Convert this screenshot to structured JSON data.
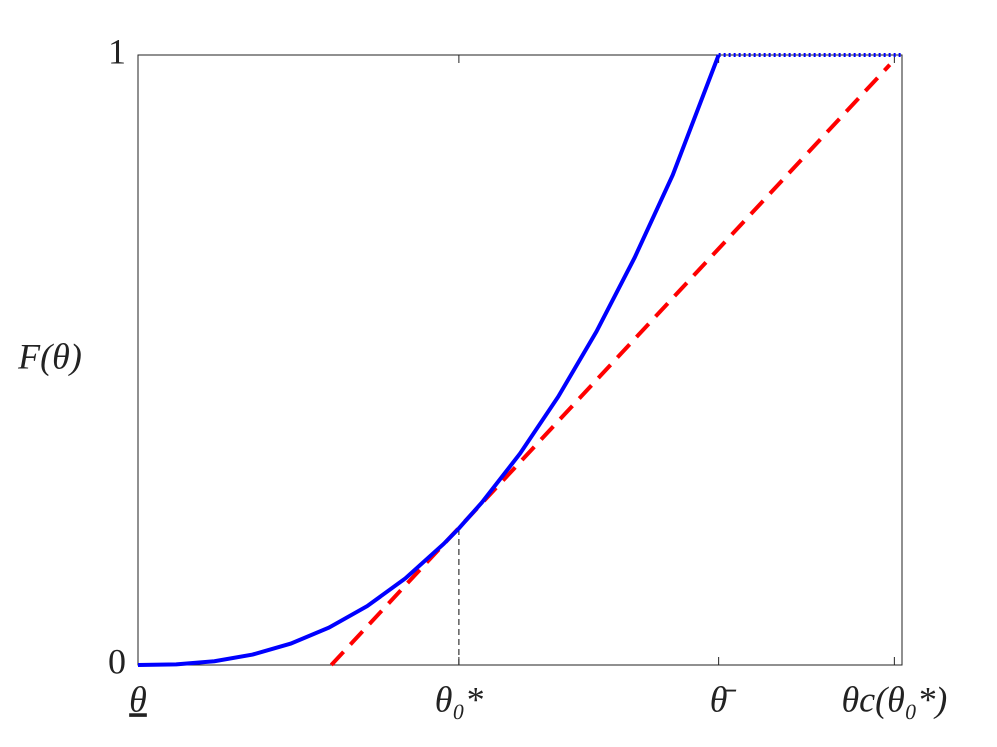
{
  "chart_data": {
    "type": "line",
    "y_label": "F(θ)",
    "xlim": [
      0,
      1
    ],
    "ylim": [
      0,
      1
    ],
    "xticks": [
      {
        "value": 0,
        "label": "θ"
      },
      {
        "value": 0.42,
        "label": "θ₀*"
      },
      {
        "value": 0.76,
        "label": "θ̄"
      },
      {
        "value": 0.99,
        "label": "θc(θ₀*)"
      }
    ],
    "yticks": [
      0,
      1
    ],
    "grid": false,
    "series": [
      {
        "color": "#0000ff",
        "style": "solid",
        "x": [
          0,
          0.05,
          0.1,
          0.15,
          0.2,
          0.25,
          0.3,
          0.35,
          0.4,
          0.42,
          0.45,
          0.5,
          0.55,
          0.6,
          0.65,
          0.7,
          0.76
        ],
        "values": [
          0,
          0.0011,
          0.0062,
          0.0171,
          0.0351,
          0.0613,
          0.0966,
          0.142,
          0.1984,
          0.224,
          0.2663,
          0.3465,
          0.4398,
          0.5465,
          0.6677,
          0.8036,
          1
        ]
      },
      {
        "color": "#0000ff",
        "style": "dotted",
        "x": [
          0.76,
          1
        ],
        "values": [
          1,
          1
        ]
      },
      {
        "color": "#ff0000",
        "style": "dashed",
        "x": [
          0.253,
          0.984
        ],
        "values": [
          0,
          0.984
        ]
      },
      {
        "color": "#333333",
        "style": "thin-dashed",
        "x": [
          0.42,
          0.42
        ],
        "values": [
          0,
          0.224
        ]
      }
    ]
  }
}
